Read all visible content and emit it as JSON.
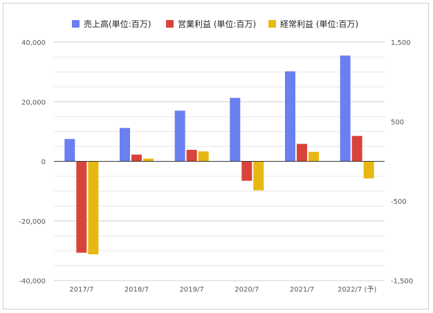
{
  "chart_data": {
    "type": "bar",
    "categories": [
      "2017/7",
      "2018/7",
      "2019/7",
      "2020/7",
      "2021/7",
      "2022/7 (予)"
    ],
    "series": [
      {
        "name": "売上高(単位:百万)",
        "axis": "left",
        "color": "#6b7ff0",
        "values": [
          7500,
          11200,
          17000,
          21300,
          30200,
          35500
        ]
      },
      {
        "name": "営業利益 (単位:百万)",
        "axis": "right",
        "color": "#d9443a",
        "values": [
          -1150,
          85,
          145,
          -245,
          220,
          320
        ]
      },
      {
        "name": "経常利益 (単位:百万)",
        "axis": "right",
        "color": "#e8b812",
        "values": [
          -1170,
          35,
          125,
          -365,
          120,
          -215
        ]
      }
    ],
    "y_left": {
      "min": -40000,
      "max": 40000,
      "ticks": [
        "40,000",
        "20,000",
        "0",
        "-20,000",
        "-40,000"
      ]
    },
    "y_right": {
      "min": -1500,
      "max": 1500,
      "ticks": [
        "1,500",
        "500",
        "-500",
        "-1,500"
      ]
    },
    "grid": true,
    "legend_position": "top"
  }
}
